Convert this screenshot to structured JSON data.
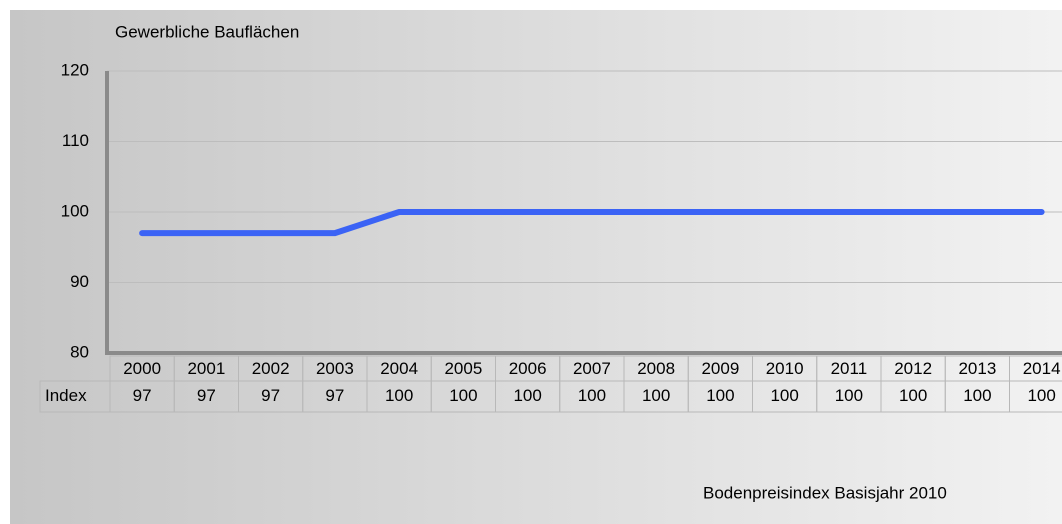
{
  "chart_data": {
    "type": "line",
    "title": "Gewerbliche Bauflächen",
    "categories": [
      "2000",
      "2001",
      "2002",
      "2003",
      "2004",
      "2005",
      "2006",
      "2007",
      "2008",
      "2009",
      "2010",
      "2011",
      "2012",
      "2013",
      "2014"
    ],
    "series": [
      {
        "name": "Index",
        "color": "#3b63f5",
        "values": [
          97,
          97,
          97,
          97,
          100,
          100,
          100,
          100,
          100,
          100,
          100,
          100,
          100,
          100,
          100
        ]
      }
    ],
    "ylim": [
      80,
      120
    ],
    "yticks": [
      80,
      90,
      100,
      110,
      120
    ],
    "grid": true,
    "footnote": "Bodenpreisindex Basisjahr 2010"
  }
}
